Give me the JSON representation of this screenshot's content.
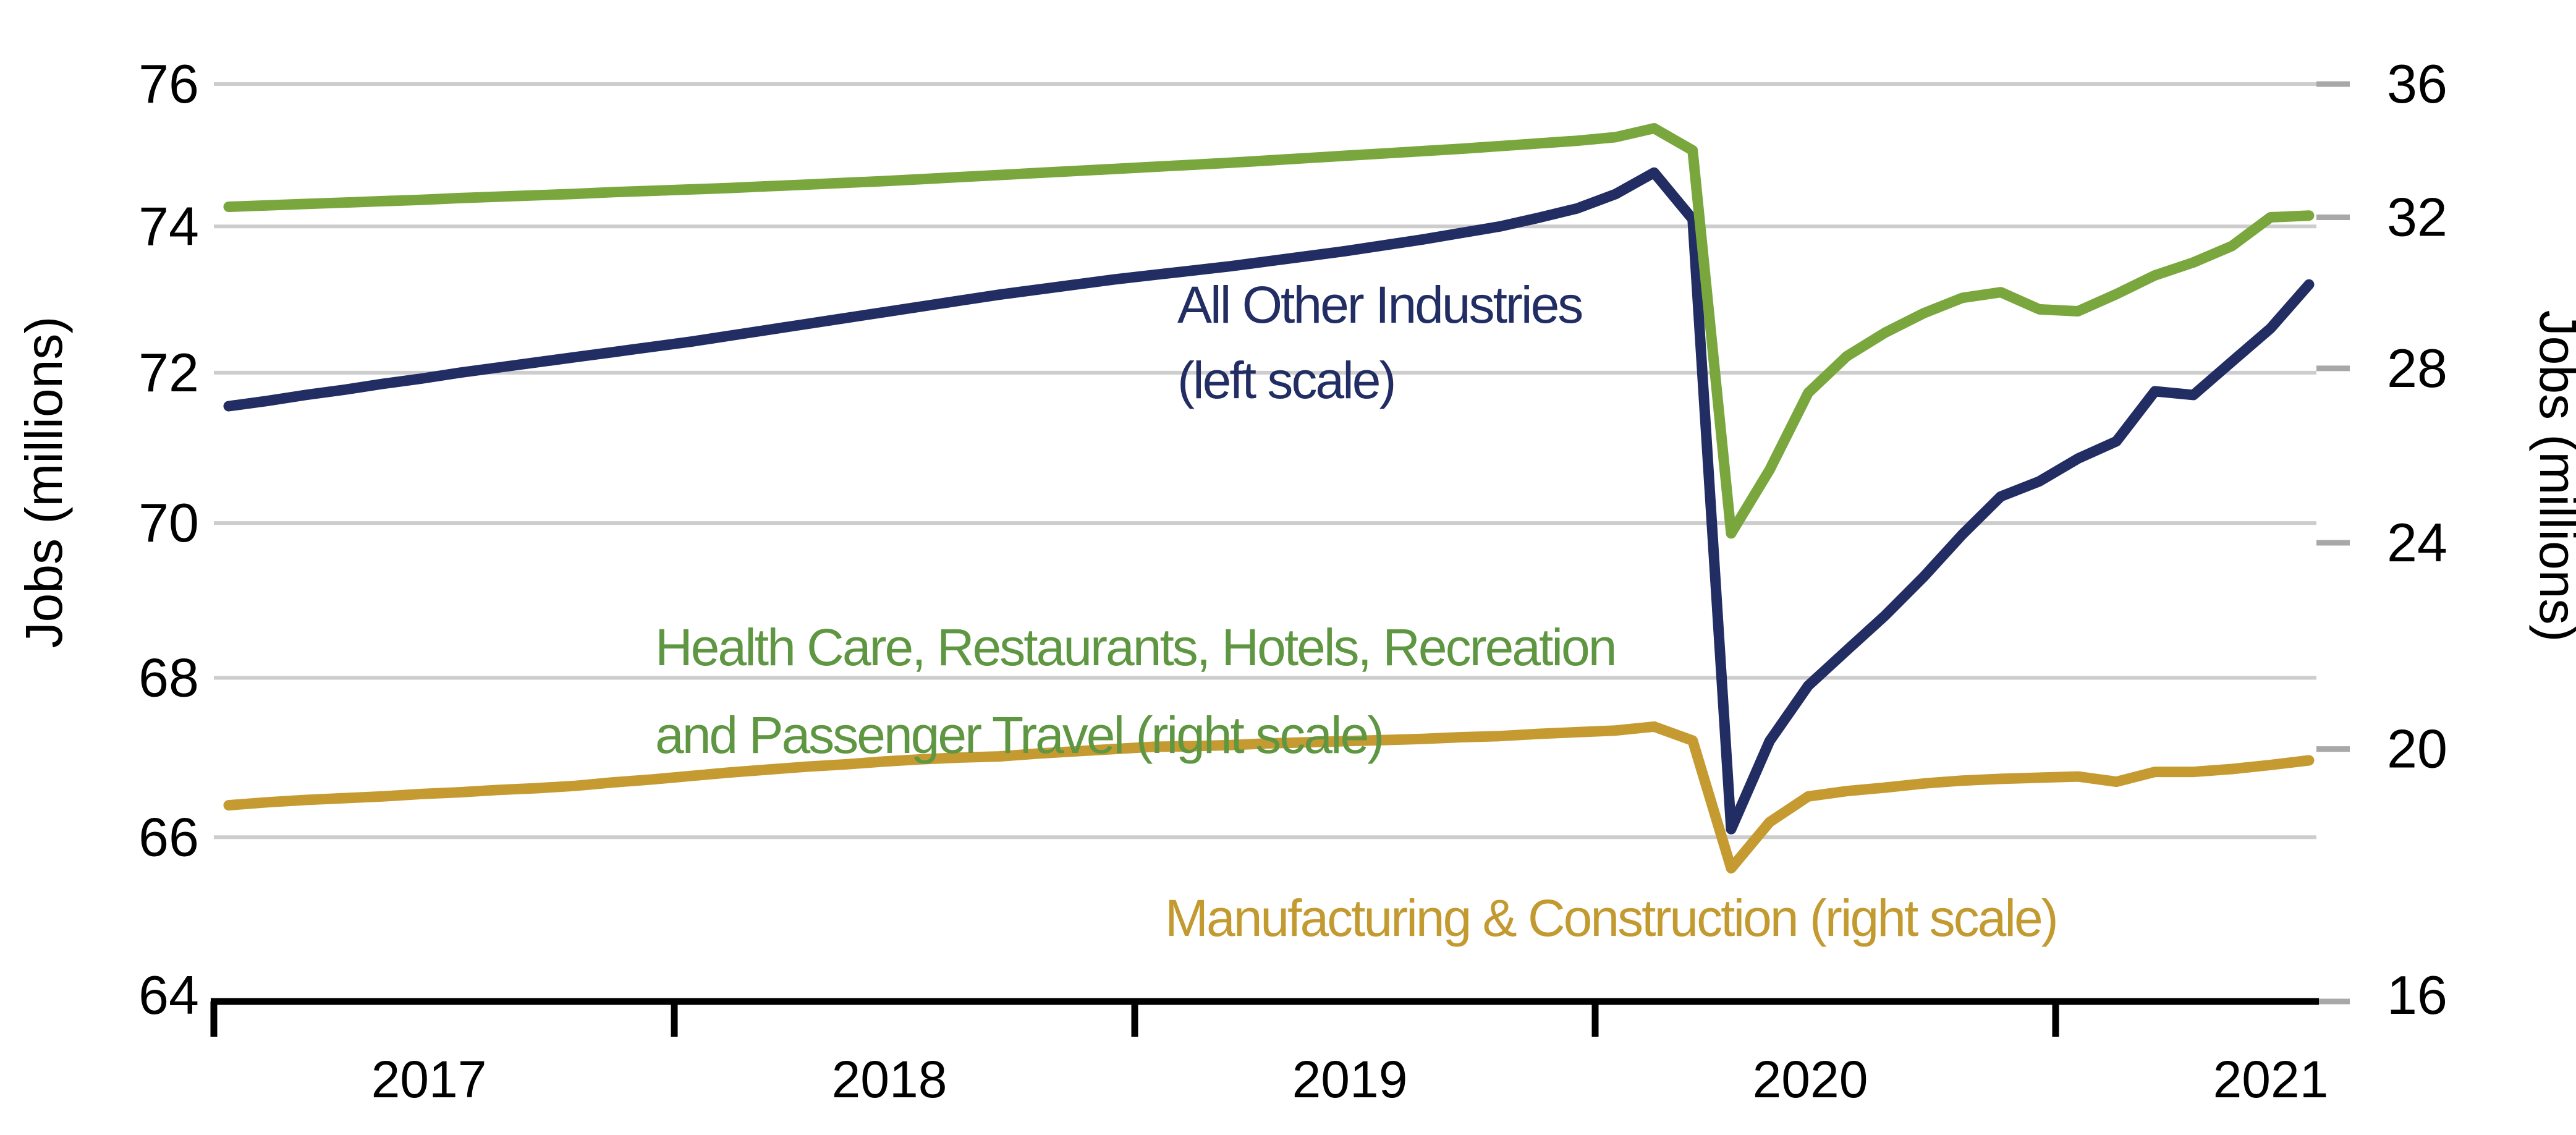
{
  "chart_data": {
    "type": "line",
    "title": "",
    "x_monthly": {
      "start": "2017-01",
      "end": "2021-07",
      "points": 55
    },
    "x_axis": {
      "years": [
        "2017",
        "2018",
        "2019",
        "2020",
        "2021"
      ]
    },
    "left_axis": {
      "title": "Jobs (millions)",
      "scale": "log",
      "range": [
        64,
        76
      ],
      "tick_labels": [
        "76",
        "74",
        "72",
        "70",
        "68",
        "66",
        "64"
      ],
      "tick_values": [
        76,
        74,
        72,
        70,
        68,
        66,
        64
      ]
    },
    "right_axis": {
      "title": "Jobs (millions)",
      "scale": "log",
      "range": [
        16,
        36
      ],
      "tick_labels": [
        "36",
        "32",
        "28",
        "24",
        "20",
        "16"
      ],
      "tick_values": [
        36,
        32,
        28,
        24,
        20,
        16
      ]
    },
    "grid": "horizontal-only",
    "legend_position": "inline-annotations",
    "series": [
      {
        "key": "gold",
        "name": "Manufacturing & Construction",
        "scale": "right",
        "color": "#c59b31",
        "values": [
          19.03,
          19.08,
          19.12,
          19.15,
          19.18,
          19.22,
          19.25,
          19.29,
          19.32,
          19.36,
          19.42,
          19.47,
          19.53,
          19.59,
          19.64,
          19.69,
          19.73,
          19.78,
          19.82,
          19.85,
          19.87,
          19.92,
          19.96,
          20.0,
          20.04,
          20.05,
          20.07,
          20.1,
          20.12,
          20.14,
          20.16,
          20.18,
          20.21,
          20.23,
          20.27,
          20.3,
          20.33,
          20.4,
          20.15,
          18.0,
          18.75,
          19.18,
          19.27,
          19.33,
          19.4,
          19.45,
          19.48,
          19.5,
          19.52,
          19.43,
          19.6,
          19.6,
          19.65,
          19.72,
          19.8
        ]
      },
      {
        "key": "navy",
        "name": "All Other Industries",
        "scale": "left",
        "color": "#222d63",
        "values": [
          71.55,
          71.62,
          71.7,
          71.77,
          71.85,
          71.92,
          72.0,
          72.07,
          72.14,
          72.21,
          72.28,
          72.35,
          72.42,
          72.5,
          72.58,
          72.66,
          72.74,
          72.82,
          72.9,
          72.98,
          73.06,
          73.13,
          73.2,
          73.27,
          73.33,
          73.39,
          73.45,
          73.52,
          73.59,
          73.66,
          73.74,
          73.82,
          73.91,
          74.0,
          74.12,
          74.25,
          74.45,
          74.75,
          74.1,
          66.1,
          67.2,
          67.9,
          68.35,
          68.8,
          69.3,
          69.85,
          70.35,
          70.55,
          70.85,
          71.08,
          71.75,
          71.7,
          72.15,
          72.6,
          73.2
        ]
      },
      {
        "key": "green",
        "name": "Health Care, Restaurants, Hotels, Recreation and Passenger Travel",
        "scale": "right",
        "color": "#79a73d",
        "values": [
          32.3,
          32.34,
          32.38,
          32.42,
          32.46,
          32.5,
          32.55,
          32.59,
          32.63,
          32.67,
          32.72,
          32.76,
          32.8,
          32.84,
          32.89,
          32.94,
          32.99,
          33.04,
          33.1,
          33.16,
          33.22,
          33.28,
          33.34,
          33.4,
          33.46,
          33.52,
          33.58,
          33.65,
          33.72,
          33.79,
          33.86,
          33.93,
          34.0,
          34.08,
          34.16,
          34.24,
          34.35,
          34.62,
          33.95,
          24.2,
          25.6,
          27.4,
          28.3,
          28.9,
          29.4,
          29.8,
          29.95,
          29.5,
          29.45,
          29.9,
          30.4,
          30.75,
          31.2,
          32.0,
          32.05
        ]
      }
    ],
    "annotations": [
      {
        "key": "navy",
        "lines": [
          "All Other Industries",
          "(left scale)"
        ],
        "text_color": "#222d63"
      },
      {
        "key": "green",
        "lines": [
          "Health Care, Restaurants, Hotels, Recreation",
          "and Passenger Travel (right scale)"
        ],
        "text_color": "#5f9642"
      },
      {
        "key": "gold",
        "lines": [
          "Manufacturing & Construction (right scale)"
        ],
        "text_color": "#c29a30"
      }
    ],
    "colors": {
      "gridline": "#cdcdcd",
      "right_tick_dash": "#a8a8a8",
      "axis": "#000000"
    }
  }
}
